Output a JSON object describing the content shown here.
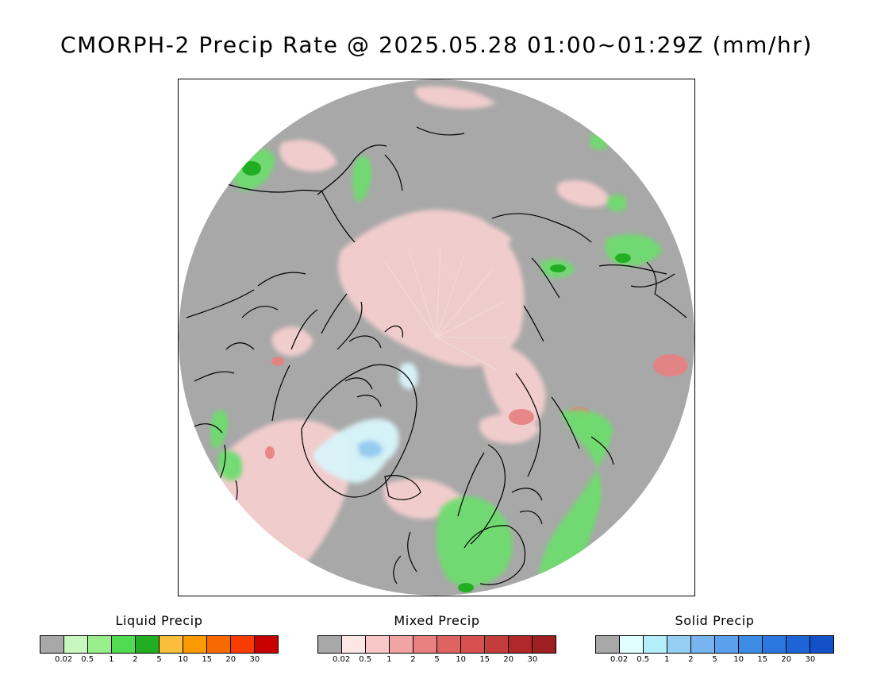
{
  "title": "CMORPH-2 Precip Rate @ 2025.05.28 01:00~01:29Z (mm/hr)",
  "map": {
    "projection": "polar stereographic (north pole)",
    "background_color": "#a8a8a8",
    "coastline_color": "#000000"
  },
  "legends": [
    {
      "id": "liquid",
      "title": "Liquid Precip",
      "colors": [
        "#a8a8a8",
        "#c8f8c0",
        "#98ee88",
        "#50dc50",
        "#22ae22",
        "#f8be3c",
        "#f89a00",
        "#f86a00",
        "#f83c00",
        "#c80000"
      ],
      "ticks": [
        "0.02",
        "0.5",
        "1",
        "2",
        "5",
        "10",
        "15",
        "20",
        "30"
      ]
    },
    {
      "id": "mixed",
      "title": "Mixed Precip",
      "colors": [
        "#a8a8a8",
        "#fde6e6",
        "#f8c8c8",
        "#f0a4a4",
        "#e88080",
        "#de6464",
        "#d65050",
        "#c43c3c",
        "#b02828",
        "#9c2020"
      ],
      "ticks": [
        "0.02",
        "0.5",
        "1",
        "2",
        "5",
        "10",
        "15",
        "20",
        "30"
      ]
    },
    {
      "id": "solid",
      "title": "Solid Precip",
      "colors": [
        "#a8a8a8",
        "#e0ffff",
        "#b4eef8",
        "#96cef4",
        "#78b4f0",
        "#5aa0ec",
        "#3c8ce6",
        "#2a78e0",
        "#1e64d6",
        "#1450c8"
      ],
      "ticks": [
        "0.02",
        "0.5",
        "1",
        "2",
        "5",
        "10",
        "15",
        "20",
        "30"
      ]
    }
  ]
}
